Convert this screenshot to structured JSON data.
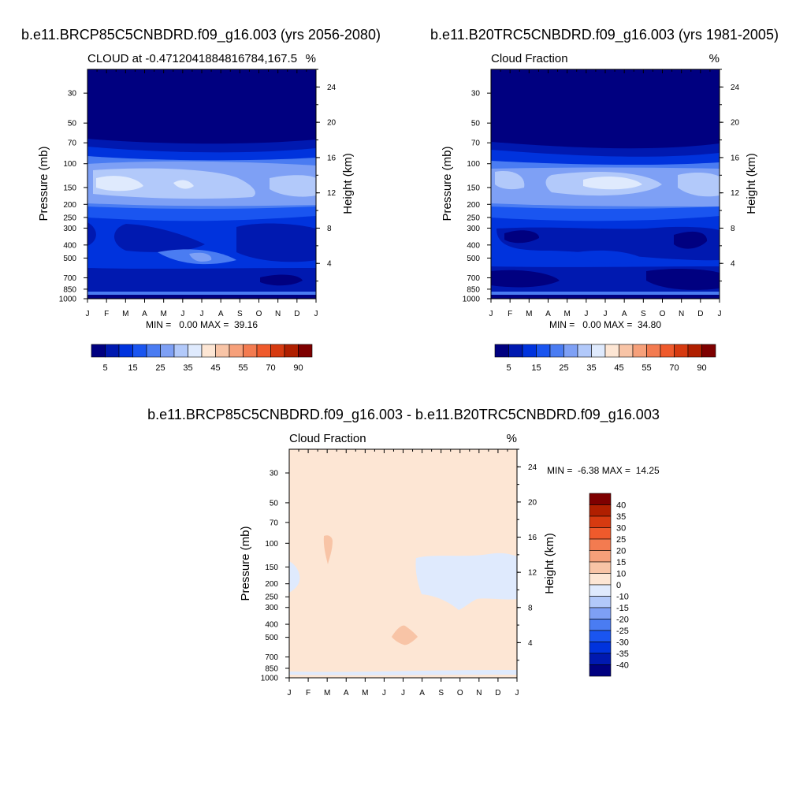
{
  "colors": {
    "positive_scale": [
      "#000080",
      "#0019b0",
      "#0033dd",
      "#1a55f0",
      "#4a7cf2",
      "#7ea0f5",
      "#b2c9fa",
      "#dfeafd",
      "#fde6d4",
      "#f8c4a6",
      "#f6a07a",
      "#f37b50",
      "#ef5a2c",
      "#d63a10",
      "#b01f00",
      "#7e0000"
    ],
    "diff_scale": [
      "#7e0000",
      "#b01f00",
      "#d63a10",
      "#ef5a2c",
      "#f37b50",
      "#f6a07a",
      "#f8c4a6",
      "#fde6d4",
      "#dfeafd",
      "#b2c9fa",
      "#7ea0f5",
      "#4a7cf2",
      "#1a55f0",
      "#0033dd",
      "#0019b0",
      "#000080"
    ]
  },
  "chart_data": [
    {
      "type": "heatmap",
      "title": "b.e11.BRCP85C5CNBDRD.f09_g16.003 (yrs 2056-2080)",
      "subtitle_left": "CLOUD at -0.4712041884816784,167.5",
      "subtitle_right": "%",
      "ylabel": "Pressure (mb)",
      "ylabel_right": "Height (km)",
      "x_ticks": [
        "J",
        "F",
        "M",
        "A",
        "M",
        "J",
        "J",
        "A",
        "S",
        "O",
        "N",
        "D",
        "J"
      ],
      "y_ticks": [
        "30",
        "50",
        "70",
        "100",
        "150",
        "200",
        "250",
        "300",
        "400",
        "500",
        "700",
        "850",
        "1000"
      ],
      "y_ticks_right": [
        "24",
        "20",
        "16",
        "12",
        "8",
        "4"
      ],
      "minmax_text": "MIN =   0.00 MAX =  39.16",
      "colorbar_labels": [
        "5",
        "15",
        "25",
        "35",
        "45",
        "55",
        "70",
        "90"
      ],
      "bands_top_to_bottom": [
        {
          "pressure": "30-70",
          "approx_value": 0
        },
        {
          "pressure": "70-100",
          "approx_value": 10
        },
        {
          "pressure": "100-200",
          "approx_value": 30
        },
        {
          "pressure": "200-300",
          "approx_value": 20
        },
        {
          "pressure": "300-600",
          "approx_value": 10
        },
        {
          "pressure": "600-1000",
          "approx_value": 5
        }
      ]
    },
    {
      "type": "heatmap",
      "title": "b.e11.B20TRC5CNBDRD.f09_g16.003 (yrs 1981-2005)",
      "subtitle_left": "Cloud Fraction",
      "subtitle_right": "%",
      "ylabel": "Pressure (mb)",
      "ylabel_right": "Height (km)",
      "x_ticks": [
        "J",
        "F",
        "M",
        "A",
        "M",
        "J",
        "J",
        "A",
        "S",
        "O",
        "N",
        "D",
        "J"
      ],
      "y_ticks": [
        "30",
        "50",
        "70",
        "100",
        "150",
        "200",
        "250",
        "300",
        "400",
        "500",
        "700",
        "850",
        "1000"
      ],
      "y_ticks_right": [
        "24",
        "20",
        "16",
        "12",
        "8",
        "4"
      ],
      "minmax_text": "MIN =   0.00 MAX =  34.80",
      "colorbar_labels": [
        "5",
        "15",
        "25",
        "35",
        "45",
        "55",
        "70",
        "90"
      ]
    },
    {
      "type": "heatmap",
      "title": "b.e11.BRCP85C5CNBDRD.f09_g16.003 - b.e11.B20TRC5CNBDRD.f09_g16.003",
      "subtitle_left": "Cloud Fraction",
      "subtitle_right": "%",
      "ylabel": "Pressure (mb)",
      "ylabel_right": "Height (km)",
      "x_ticks": [
        "J",
        "F",
        "M",
        "A",
        "M",
        "J",
        "J",
        "A",
        "S",
        "O",
        "N",
        "D",
        "J"
      ],
      "y_ticks": [
        "30",
        "50",
        "70",
        "100",
        "150",
        "200",
        "250",
        "300",
        "400",
        "500",
        "700",
        "850",
        "1000"
      ],
      "y_ticks_right": [
        "24",
        "20",
        "16",
        "12",
        "8",
        "4"
      ],
      "minmax_text": "MIN =  -6.38 MAX =  14.25",
      "colorbar_labels": [
        "40",
        "35",
        "30",
        "25",
        "20",
        "15",
        "10",
        "0",
        "-10",
        "-15",
        "-20",
        "-25",
        "-30",
        "-35",
        "-40"
      ]
    }
  ]
}
